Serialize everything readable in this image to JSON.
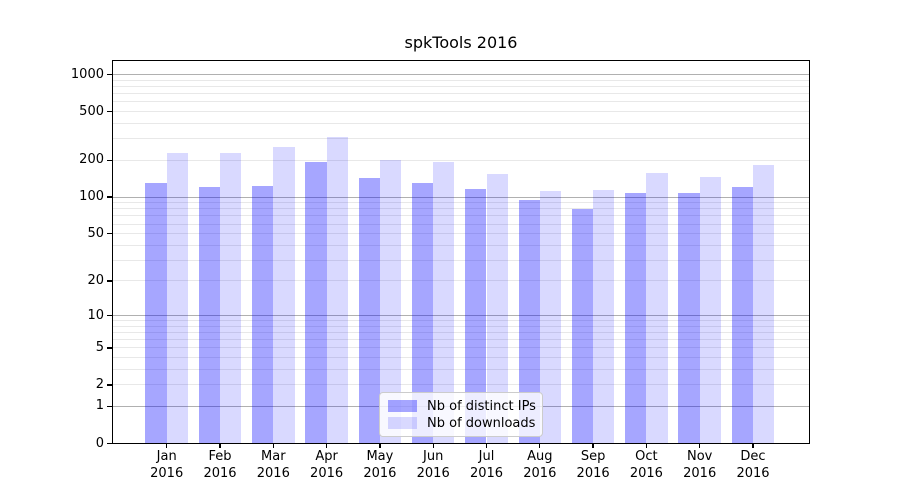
{
  "chart_data": {
    "type": "bar",
    "title": "spkTools 2016",
    "categories": [
      "Jan 2016",
      "Feb 2016",
      "Mar 2016",
      "Apr 2016",
      "May 2016",
      "Jun 2016",
      "Jul 2016",
      "Aug 2016",
      "Sep 2016",
      "Oct 2016",
      "Nov 2016",
      "Dec 2016"
    ],
    "series": [
      {
        "name": "Nb of distinct IPs",
        "color": "rgba(0,0,255,0.35)",
        "color_hex_on_white": "#a6a6ff",
        "values": [
          130,
          122,
          124,
          193,
          144,
          131,
          116,
          94,
          80,
          108,
          108,
          121
        ]
      },
      {
        "name": "Nb of downloads",
        "color": "rgba(0,0,255,0.15)",
        "color_hex_on_white": "#d9d9ff",
        "values": [
          229,
          229,
          256,
          309,
          203,
          193,
          156,
          112,
          114,
          157,
          145,
          182
        ]
      }
    ],
    "xlabel": "",
    "ylabel": "",
    "yscale": "log1p",
    "ylim": [
      0,
      1330
    ],
    "yticks": [
      0,
      1,
      2,
      5,
      10,
      20,
      50,
      100,
      200,
      500,
      1000
    ],
    "grid": true,
    "legend_position": "lower center",
    "style": {
      "grid_major_color": "#b0b0b0",
      "grid_minor_color": "#e8e8e8",
      "axis_color": "#000000",
      "background": "#ffffff",
      "legend_bg": "rgba(255,255,255,0.8)",
      "legend_border": "#cccccc"
    }
  }
}
